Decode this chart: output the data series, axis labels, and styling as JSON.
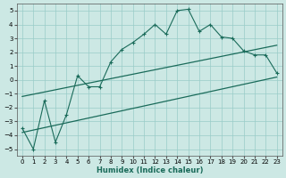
{
  "xlabel": "Humidex (Indice chaleur)",
  "ylabel": "",
  "xlim": [
    -0.5,
    23.5
  ],
  "ylim": [
    -5.5,
    5.5
  ],
  "yticks": [
    -5,
    -4,
    -3,
    -2,
    -1,
    0,
    1,
    2,
    3,
    4,
    5
  ],
  "xticks": [
    0,
    1,
    2,
    3,
    4,
    5,
    6,
    7,
    8,
    9,
    10,
    11,
    12,
    13,
    14,
    15,
    16,
    17,
    18,
    19,
    20,
    21,
    22,
    23
  ],
  "bg_color": "#cce8e4",
  "grid_color": "#99ccc8",
  "line_color": "#1a6b5a",
  "main_x": [
    0,
    1,
    2,
    3,
    4,
    5,
    6,
    7,
    8,
    9,
    10,
    11,
    12,
    13,
    14,
    15,
    16,
    17,
    18,
    19,
    20,
    21,
    22,
    23
  ],
  "main_y": [
    -3.5,
    -5.0,
    -1.5,
    -4.5,
    -2.5,
    0.3,
    -0.5,
    -0.5,
    1.3,
    2.2,
    2.7,
    3.3,
    4.0,
    3.3,
    5.0,
    5.1,
    3.5,
    4.0,
    3.1,
    3.0,
    2.1,
    1.8,
    1.8,
    0.5
  ],
  "upper_line_x": [
    0,
    23
  ],
  "upper_line_y": [
    -1.2,
    2.5
  ],
  "lower_line_x": [
    0,
    23
  ],
  "lower_line_y": [
    -3.8,
    0.2
  ],
  "xlabel_fontsize": 6,
  "tick_fontsize": 5
}
